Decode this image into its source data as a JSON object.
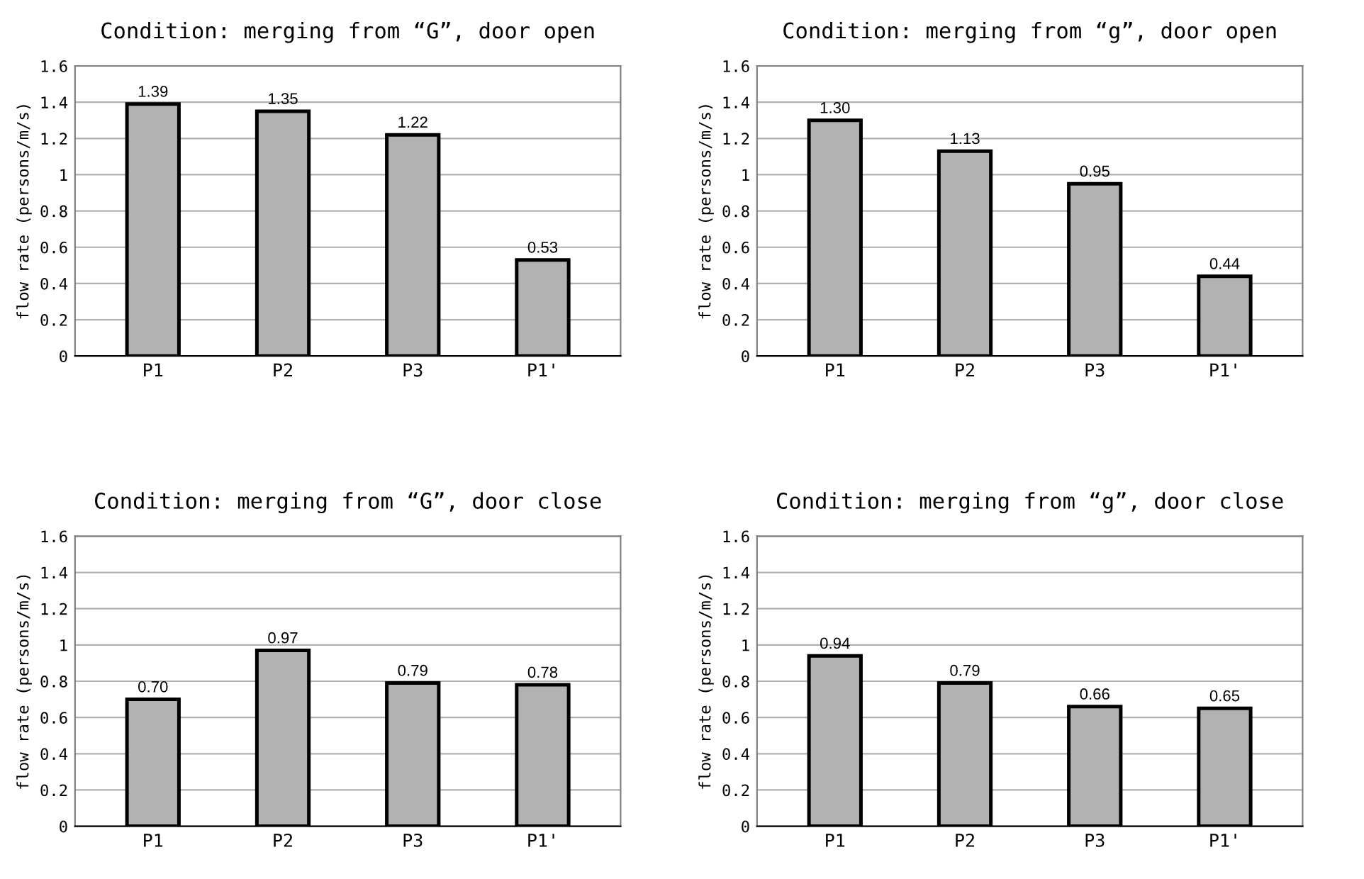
{
  "chart_data": [
    {
      "type": "bar",
      "title": "Condition: merging from “G”, door open",
      "ylabel": "flow rate (persons/m/s)",
      "categories": [
        "P1",
        "P2",
        "P3",
        "P1'"
      ],
      "values": [
        1.39,
        1.35,
        1.22,
        0.53
      ],
      "value_labels": [
        "1.39",
        "1.35",
        "1.22",
        "0.53"
      ],
      "color": "#b2b2b2",
      "ylim": [
        0,
        1.6
      ],
      "yticks": [
        0,
        0.2,
        0.4,
        0.6,
        0.8,
        1,
        1.2,
        1.4,
        1.6
      ],
      "grid": "y",
      "legend": false
    },
    {
      "type": "bar",
      "title": "Condition: merging from “g”, door open",
      "ylabel": "flow rate (persons/m/s)",
      "categories": [
        "P1",
        "P2",
        "P3",
        "P1'"
      ],
      "values": [
        1.3,
        1.13,
        0.95,
        0.44
      ],
      "value_labels": [
        "1.30",
        "1.13",
        "0.95",
        "0.44"
      ],
      "color": "#b2b2b2",
      "ylim": [
        0,
        1.6
      ],
      "yticks": [
        0,
        0.2,
        0.4,
        0.6,
        0.8,
        1,
        1.2,
        1.4,
        1.6
      ],
      "grid": "y",
      "legend": false
    },
    {
      "type": "bar",
      "title": "Condition: merging from “G”, door close",
      "ylabel": "flow rate (persons/m/s)",
      "categories": [
        "P1",
        "P2",
        "P3",
        "P1'"
      ],
      "values": [
        0.7,
        0.97,
        0.79,
        0.78
      ],
      "value_labels": [
        "0.70",
        "0.97",
        "0.79",
        "0.78"
      ],
      "color": "#b2b2b2",
      "ylim": [
        0,
        1.6
      ],
      "yticks": [
        0,
        0.2,
        0.4,
        0.6,
        0.8,
        1,
        1.2,
        1.4,
        1.6
      ],
      "grid": "y",
      "legend": false
    },
    {
      "type": "bar",
      "title": "Condition: merging from “g”, door close",
      "ylabel": "flow rate (persons/m/s)",
      "categories": [
        "P1",
        "P2",
        "P3",
        "P1'"
      ],
      "values": [
        0.94,
        0.79,
        0.66,
        0.65
      ],
      "value_labels": [
        "0.94",
        "0.79",
        "0.66",
        "0.65"
      ],
      "color": "#b2b2b2",
      "ylim": [
        0,
        1.6
      ],
      "yticks": [
        0,
        0.2,
        0.4,
        0.6,
        0.8,
        1,
        1.2,
        1.4,
        1.6
      ],
      "grid": "y",
      "legend": false
    }
  ]
}
